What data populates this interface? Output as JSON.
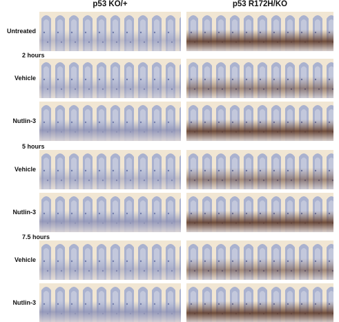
{
  "columns": [
    "p53 KO/+",
    "p53 R172H/KO"
  ],
  "sections": [
    {
      "rows": [
        {
          "label": "Untreated"
        }
      ]
    },
    {
      "title": "2 hours",
      "rows": [
        {
          "label": "Vehicle"
        },
        {
          "label": "Nutlin-3"
        }
      ]
    },
    {
      "title": "5 hours",
      "rows": [
        {
          "label": "Vehicle"
        },
        {
          "label": "Nutlin-3"
        }
      ]
    },
    {
      "title": "7.5 hours",
      "rows": [
        {
          "label": "Vehicle"
        },
        {
          "label": "Nutlin-3"
        }
      ]
    }
  ]
}
